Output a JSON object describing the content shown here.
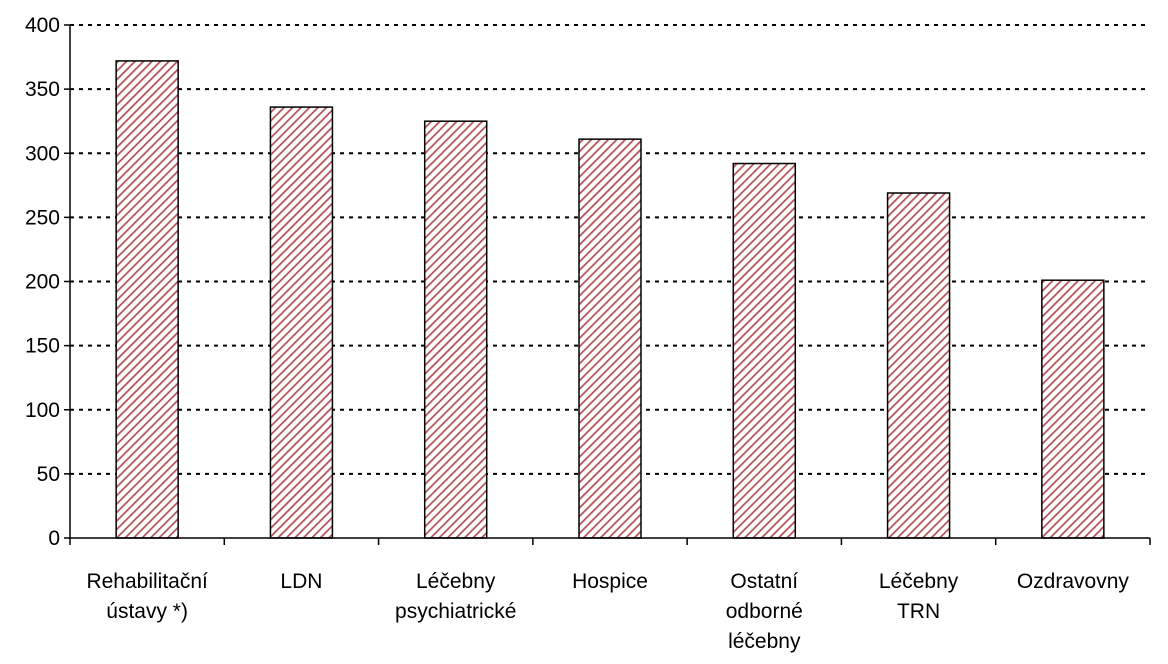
{
  "chart_data": {
    "type": "bar",
    "title": "",
    "xlabel": "",
    "ylabel": "",
    "categories": [
      [
        "Rehabilitační",
        "ústavy *)"
      ],
      [
        "LDN"
      ],
      [
        "Léčebny",
        "psychiatrické"
      ],
      [
        "Hospice"
      ],
      [
        "Ostatní",
        "odborné",
        "léčebny"
      ],
      [
        "Léčebny",
        "TRN"
      ],
      [
        "Ozdravovny"
      ]
    ],
    "values": [
      372,
      336,
      325,
      311,
      292,
      269,
      201
    ],
    "ylim": [
      0,
      400
    ],
    "yticks": [
      0,
      50,
      100,
      150,
      200,
      250,
      300,
      350,
      400
    ],
    "grid": true,
    "grid_style": "dotted",
    "legend": "none",
    "colors": {
      "bar_hatch": "#b45258",
      "bar_fill": "#ffffff",
      "bar_outline": "#000000",
      "grid": "#000000",
      "axis": "#000000"
    }
  }
}
